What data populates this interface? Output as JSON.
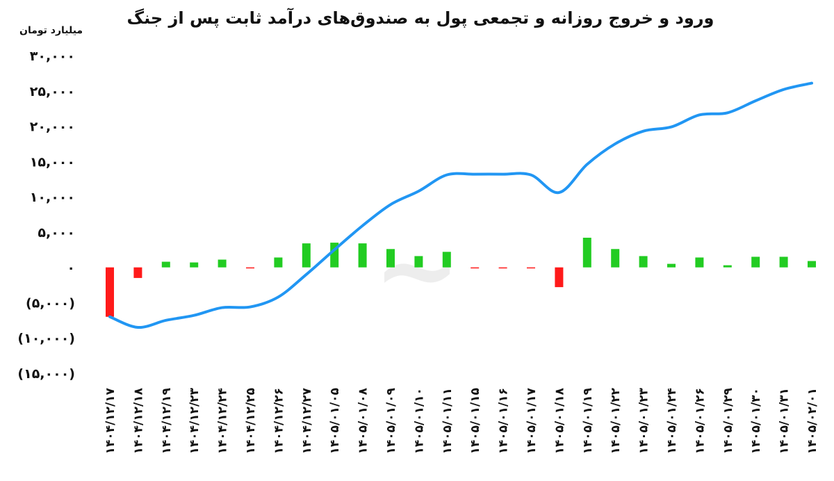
{
  "chart_data": {
    "type": "bar",
    "title": "ورود و خروج روزانه و تجمعی پول به صندوق‌های درآمد ثابت پس از جنگ",
    "ylabel": "میلیارد تومان",
    "ylim": [
      -15000,
      30000
    ],
    "yticks": [
      {
        "value": 30000,
        "label": "۳۰,۰۰۰"
      },
      {
        "value": 25000,
        "label": "۲۵,۰۰۰"
      },
      {
        "value": 20000,
        "label": "۲۰,۰۰۰"
      },
      {
        "value": 15000,
        "label": "۱۵,۰۰۰"
      },
      {
        "value": 10000,
        "label": "۱۰,۰۰۰"
      },
      {
        "value": 5000,
        "label": "۵,۰۰۰"
      },
      {
        "value": 0,
        "label": "۰"
      },
      {
        "value": -5000,
        "label": "(۵,۰۰۰)"
      },
      {
        "value": -10000,
        "label": "(۱۰,۰۰۰)"
      },
      {
        "value": -15000,
        "label": "(۱۵,۰۰۰)"
      }
    ],
    "categories": [
      "۱۴۰۴/۱۲/۱۷",
      "۱۴۰۴/۱۲/۱۸",
      "۱۴۰۴/۱۲/۱۹",
      "۱۴۰۴/۱۲/۲۳",
      "۱۴۰۴/۱۲/۲۴",
      "۱۴۰۴/۱۲/۲۵",
      "۱۴۰۴/۱۲/۲۶",
      "۱۴۰۴/۱۲/۲۷",
      "۱۴۰۵/۰۱/۰۵",
      "۱۴۰۵/۰۱/۰۸",
      "۱۴۰۵/۰۱/۰۹",
      "۱۴۰۵/۰۱/۱۰",
      "۱۴۰۵/۰۱/۱۱",
      "۱۴۰۵/۰۱/۱۵",
      "۱۴۰۵/۰۱/۱۶",
      "۱۴۰۵/۰۱/۱۷",
      "۱۴۰۵/۰۱/۱۸",
      "۱۴۰۵/۰۱/۱۹",
      "۱۴۰۵/۰۱/۲۲",
      "۱۴۰۵/۰۱/۲۳",
      "۱۴۰۵/۰۱/۲۴",
      "۱۴۰۵/۰۱/۲۶",
      "۱۴۰۵/۰۱/۲۹",
      "۱۴۰۵/۰۱/۳۰",
      "۱۴۰۵/۰۱/۳۱",
      "۱۴۰۵/۰۲/۰۱"
    ],
    "series": [
      {
        "type": "bar",
        "values": [
          -7000,
          -1500,
          800,
          700,
          1100,
          -100,
          1400,
          3400,
          3500,
          3400,
          2600,
          1600,
          2200,
          -80,
          -150,
          -80,
          -2800,
          4200,
          2600,
          1600,
          500,
          1400,
          300,
          1500,
          1500,
          900
        ],
        "positive_color": "#22cc22",
        "negative_color": "#ff1a1a"
      },
      {
        "type": "line",
        "values": [
          -7000,
          -8500,
          -7500,
          -6800,
          -5700,
          -5600,
          -4200,
          -1000,
          2500,
          5900,
          8900,
          10800,
          13100,
          13200,
          13200,
          13100,
          10600,
          14600,
          17500,
          19300,
          19900,
          21600,
          21900,
          23600,
          25200,
          26100
        ],
        "color": "#2196f3"
      }
    ],
    "grid": false,
    "legend": "none"
  }
}
